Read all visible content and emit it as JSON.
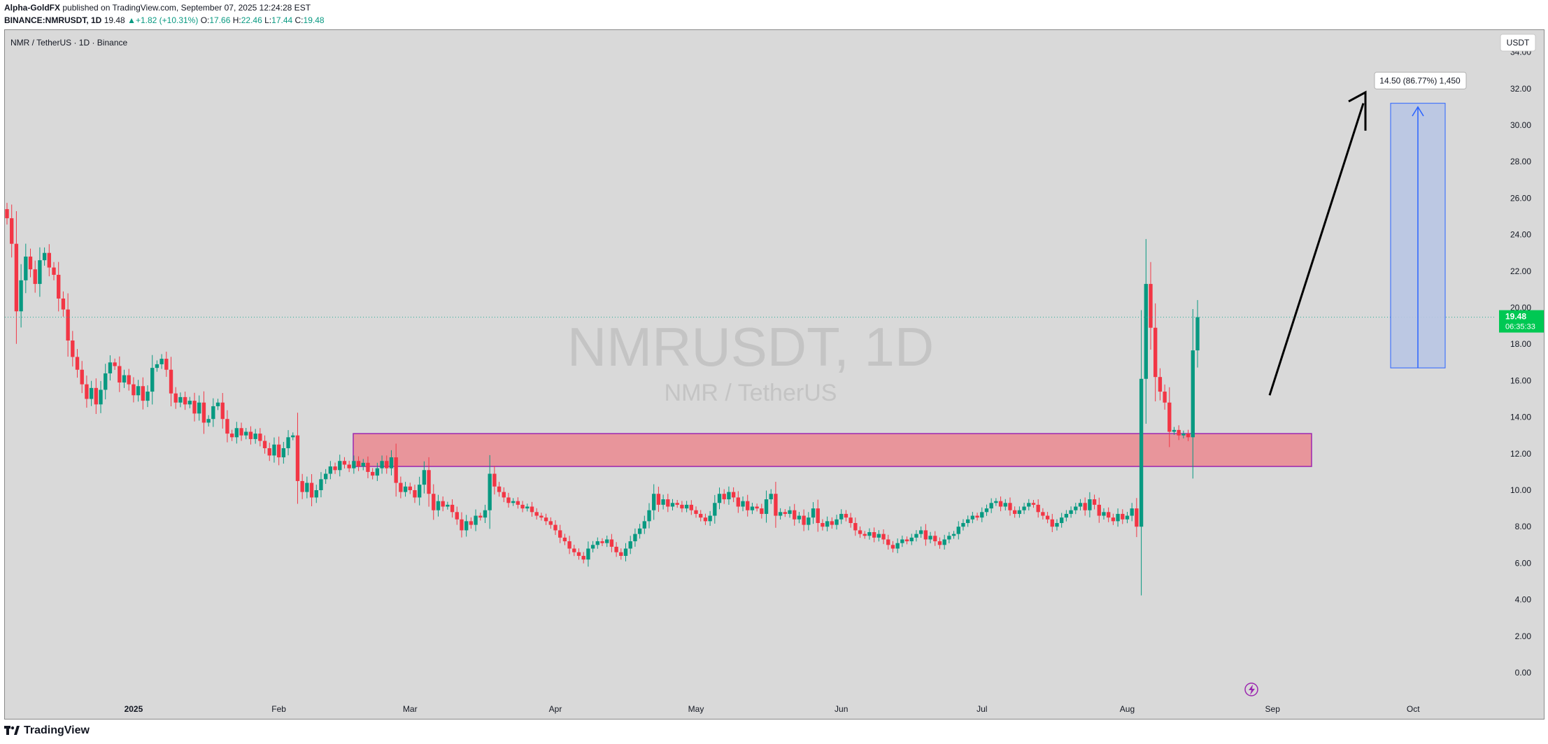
{
  "header": {
    "author": "Alpha-GoldFX",
    "published": "published on TradingView.com, September 07, 2025 12:24:28 EST",
    "symbol_line": "BINANCE:NMRUSDT, 1D",
    "last": "19.48",
    "arrow": "▲",
    "change": "+1.82 (+10.31%)",
    "o_label": "O:",
    "o": "17.66",
    "h_label": "H:",
    "h": "22.46",
    "l_label": "L:",
    "l": "17.44",
    "c_label": "C:",
    "c": "19.48"
  },
  "chart_title": "NMR / TetherUS · 1D · Binance",
  "watermark": {
    "symbol": "NMRUSDT, 1D",
    "name": "NMR / TetherUS"
  },
  "currency": "USDT",
  "price_badge": {
    "price": "19.48",
    "countdown": "06:35:33"
  },
  "measure_label": "14.50 (86.77%) 1,450",
  "brand": "TradingView",
  "colors": {
    "up": "#089981",
    "down": "#f23645",
    "bg": "#d9d9d9",
    "zone": "#e8959b",
    "zone_border": "#9c27b0",
    "measure": "#b8c5e3",
    "measure_line": "#2962ff",
    "price_line": "#22ab94"
  },
  "chart_data": {
    "type": "candlestick",
    "ylim": [
      -1,
      35
    ],
    "y_ticks": [
      "34.00",
      "32.00",
      "30.00",
      "28.00",
      "26.00",
      "24.00",
      "22.00",
      "20.00",
      "18.00",
      "16.00",
      "14.00",
      "12.00",
      "10.00",
      "8.00",
      "6.00",
      "4.00",
      "2.00",
      "0.00"
    ],
    "y_tick_values": [
      34,
      32,
      30,
      28,
      26,
      24,
      22,
      20,
      18,
      16,
      14,
      12,
      10,
      8,
      6,
      4,
      2,
      0
    ],
    "x_labels": [
      {
        "label": "2025",
        "date": "2025-01-01"
      },
      {
        "label": "Feb",
        "date": "2025-02-01"
      },
      {
        "label": "Mar",
        "date": "2025-03-01"
      },
      {
        "label": "Apr",
        "date": "2025-04-01"
      },
      {
        "label": "May",
        "date": "2025-05-01"
      },
      {
        "label": "Jun",
        "date": "2025-06-01"
      },
      {
        "label": "Jul",
        "date": "2025-07-01"
      },
      {
        "label": "Aug",
        "date": "2025-08-01"
      },
      {
        "label": "Sep",
        "date": "2025-09-01"
      },
      {
        "label": "Oct",
        "date": "2025-10-01"
      }
    ],
    "first_date": "2024-12-05",
    "close": [
      24.9,
      23.5,
      19.8,
      21.5,
      22.8,
      22.1,
      21.3,
      22.6,
      23.0,
      22.2,
      21.8,
      20.5,
      19.9,
      18.2,
      17.3,
      16.6,
      15.8,
      15.0,
      15.6,
      14.7,
      15.5,
      16.4,
      17.0,
      16.8,
      15.9,
      16.3,
      15.8,
      15.2,
      15.7,
      14.9,
      15.4,
      16.7,
      16.9,
      17.2,
      16.6,
      15.3,
      14.8,
      15.1,
      14.7,
      14.9,
      14.2,
      14.8,
      13.7,
      13.9,
      14.6,
      14.8,
      13.9,
      13.1,
      12.9,
      13.4,
      13.0,
      13.2,
      12.8,
      13.1,
      12.7,
      12.3,
      11.9,
      12.5,
      11.8,
      12.3,
      12.9,
      13.0,
      10.5,
      9.9,
      10.4,
      9.6,
      10.0,
      10.6,
      10.9,
      11.3,
      11.1,
      11.6,
      11.4,
      11.2,
      11.6,
      11.3,
      11.5,
      11.0,
      10.8,
      11.2,
      11.6,
      11.2,
      11.8,
      10.4,
      9.9,
      10.2,
      10.0,
      9.6,
      10.3,
      11.1,
      9.8,
      8.9,
      9.4,
      9.1,
      9.2,
      8.8,
      8.4,
      7.8,
      8.3,
      8.1,
      8.6,
      8.5,
      8.9,
      10.9,
      10.2,
      9.9,
      9.6,
      9.3,
      9.4,
      9.2,
      9.0,
      9.1,
      8.8,
      8.6,
      8.5,
      8.3,
      8.1,
      7.8,
      7.4,
      7.2,
      6.8,
      6.6,
      6.4,
      6.2,
      6.8,
      7.0,
      7.2,
      7.1,
      7.3,
      6.9,
      6.6,
      6.4,
      6.8,
      7.2,
      7.6,
      7.9,
      8.3,
      8.9,
      9.8,
      9.2,
      9.5,
      9.1,
      9.3,
      9.2,
      9.0,
      9.2,
      8.9,
      8.7,
      8.5,
      8.3,
      8.6,
      9.3,
      9.8,
      9.5,
      9.9,
      9.6,
      9.1,
      9.4,
      8.9,
      9.1,
      9.0,
      8.7,
      9.5,
      9.8,
      8.6,
      8.8,
      8.7,
      8.9,
      8.4,
      8.6,
      8.1,
      8.5,
      9.0,
      8.2,
      8.0,
      8.3,
      8.1,
      8.4,
      8.7,
      8.5,
      8.2,
      7.8,
      7.6,
      7.5,
      7.7,
      7.4,
      7.6,
      7.3,
      7.0,
      6.8,
      7.1,
      7.3,
      7.2,
      7.4,
      7.6,
      7.8,
      7.3,
      7.5,
      7.2,
      7.0,
      7.3,
      7.5,
      7.6,
      8.0,
      8.2,
      8.4,
      8.6,
      8.5,
      8.8,
      9.0,
      9.3,
      9.4,
      9.1,
      9.3,
      8.9,
      8.7,
      8.9,
      9.1,
      9.3,
      9.2,
      8.8,
      8.6,
      8.4,
      8.0,
      8.2,
      8.5,
      8.7,
      8.9,
      9.1,
      9.3,
      8.9,
      9.5,
      9.2,
      8.6,
      8.8,
      8.5,
      8.3,
      8.7,
      8.4,
      8.6,
      9.0,
      8.0,
      16.1,
      21.3,
      18.9,
      16.2,
      15.4,
      14.8,
      13.2,
      13.3,
      13.0,
      13.1,
      12.9,
      17.66,
      19.48
    ]
  }
}
